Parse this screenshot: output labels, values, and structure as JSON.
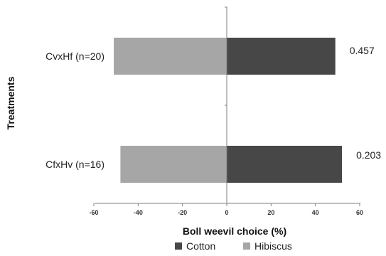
{
  "chart_data": {
    "type": "bar",
    "orientation": "horizontal",
    "stacked": "diverging",
    "categories": [
      "CvxHf (n=20)",
      "CfxHv (n=16)"
    ],
    "series": [
      {
        "name": "Cotton",
        "values": [
          49,
          52
        ],
        "color": "#474747"
      },
      {
        "name": "Hibiscus",
        "values": [
          -51,
          -48
        ],
        "color": "#a6a6a6"
      }
    ],
    "data_labels": [
      "0.457",
      "0.203"
    ],
    "xlabel": "Boll weevil choice (%)",
    "ylabel": "Treatments",
    "xlim": [
      -60,
      60
    ],
    "xticks": [
      -60,
      -40,
      -20,
      0,
      20,
      40,
      60
    ],
    "grid": false,
    "legend_position": "bottom"
  }
}
